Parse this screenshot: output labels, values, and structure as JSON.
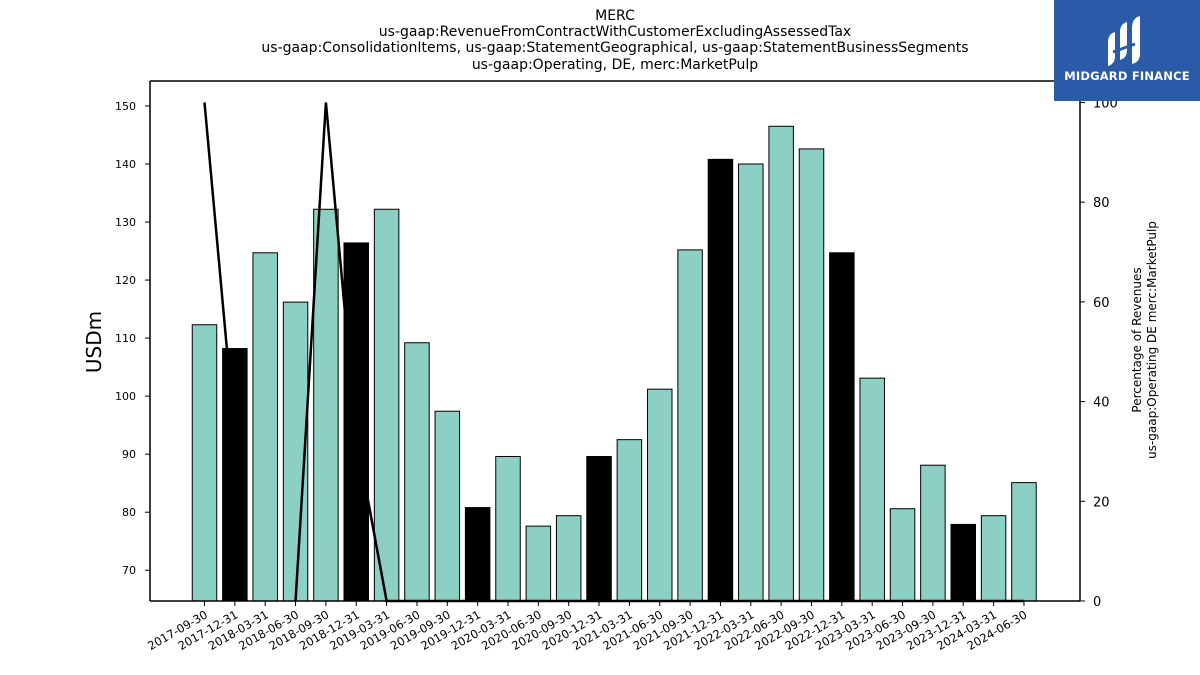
{
  "chart_data": {
    "type": "bar",
    "title_lines": [
      "MERC",
      "us-gaap:RevenueFromContractWithCustomerExcludingAssessedTax",
      "us-gaap:ConsolidationItems, us-gaap:StatementGeographical, us-gaap:StatementBusinessSegments",
      "us-gaap:Operating, DE, merc:MarketPulp"
    ],
    "ylabel": "USDm",
    "y2label_lines": [
      "Percentage of Revenues",
      "us-gaap:Operating DE merc:MarketPulp"
    ],
    "ylim": [
      64.7,
      154.3
    ],
    "yticks": [
      70,
      80,
      90,
      100,
      110,
      120,
      130,
      140,
      150
    ],
    "y2lim": [
      0,
      104.3
    ],
    "y2ticks": [
      0,
      20,
      40,
      60,
      80,
      100
    ],
    "categories": [
      "2017-09-30",
      "2017-12-31",
      "2018-03-31",
      "2018-06-30",
      "2018-09-30",
      "2018-12-31",
      "2019-03-31",
      "2019-06-30",
      "2019-09-30",
      "2019-12-31",
      "2020-03-31",
      "2020-06-30",
      "2020-09-30",
      "2020-12-31",
      "2021-03-31",
      "2021-06-30",
      "2021-09-30",
      "2021-12-31",
      "2022-03-31",
      "2022-06-30",
      "2022-09-30",
      "2022-12-31",
      "2023-03-31",
      "2023-06-30",
      "2023-09-30",
      "2023-12-31",
      "2024-03-31",
      "2024-06-30"
    ],
    "series": [
      {
        "type": "bar",
        "values": [
          112.3,
          108.2,
          124.7,
          116.2,
          132.2,
          126.4,
          132.2,
          109.2,
          97.4,
          80.8,
          89.6,
          77.6,
          79.4,
          89.6,
          92.5,
          101.2,
          125.2,
          140.8,
          140.0,
          146.5,
          142.6,
          124.7,
          103.1,
          80.6,
          88.1,
          77.9,
          79.4,
          85.1
        ],
        "highlight": [
          false,
          true,
          false,
          false,
          false,
          true,
          false,
          false,
          false,
          true,
          false,
          false,
          false,
          true,
          false,
          false,
          false,
          true,
          false,
          false,
          false,
          true,
          false,
          false,
          false,
          true,
          false,
          false
        ]
      },
      {
        "type": "line",
        "axis": "right",
        "values": [
          100,
          33,
          null,
          0,
          100,
          33,
          0,
          0,
          0,
          0,
          0,
          0,
          0,
          0,
          0,
          0,
          0,
          0,
          0,
          0,
          0,
          0,
          0,
          0,
          0,
          0,
          0,
          0
        ]
      }
    ],
    "colors": {
      "bar": "#8cd0c4",
      "highlight": "#000000",
      "line": "#000000"
    }
  },
  "logo": {
    "text": "MIDGARD FINANCE",
    "color": "#2b5aa8"
  }
}
